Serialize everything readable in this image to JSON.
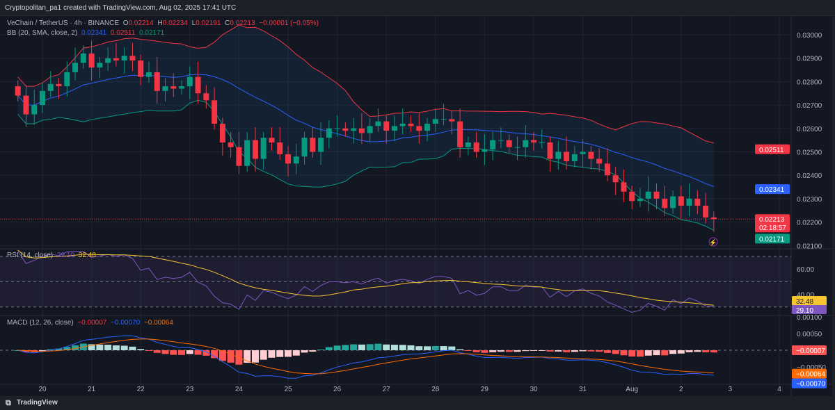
{
  "header": {
    "credit": "Cryptopolitan_pa1 created with TradingView.com, Aug 02, 2025 17:41 UTC"
  },
  "legend": {
    "symbol": "VeChain / TetherUS · 4h · BINANCE",
    "o_label": "O",
    "o": "0.02214",
    "h_label": "H",
    "h": "0.02234",
    "l_label": "L",
    "l": "0.02191",
    "c_label": "C",
    "c": "0.02213",
    "change": "−0.00001 (−0.05%)",
    "bb_label": "BB (20, SMA, close, 2)",
    "bb_basis": "0.02341",
    "bb_upper": "0.02511",
    "bb_lower": "0.02171",
    "rsi_label": "RSI (14, close)",
    "rsi": "29.10",
    "rsi_ma": "32.48",
    "macd_label": "MACD (12, 26, close)",
    "macd_hist": "−0.00007",
    "macd": "−0.00070",
    "macd_signal": "−0.00064"
  },
  "footer": {
    "brand": "TradingView"
  },
  "colors": {
    "up": "#089981",
    "down": "#f23645",
    "bb_basis": "#2962ff",
    "bb_upper": "#f23645",
    "bb_lower": "#089981",
    "rsi": "#7e57c2",
    "rsi_ma": "#f7c531",
    "macd": "#2962ff",
    "signal": "#ff6d00"
  },
  "chart_data": [
    {
      "type": "candlestick",
      "interval": "4h",
      "closes": [
        0.0274,
        0.0266,
        0.027,
        0.0276,
        0.0279,
        0.0278,
        0.0284,
        0.0288,
        0.0292,
        0.0286,
        0.0288,
        0.029,
        0.0289,
        0.0291,
        0.0289,
        0.0282,
        0.0284,
        0.0276,
        0.0278,
        0.0277,
        0.0278,
        0.0282,
        0.0275,
        0.0272,
        0.0262,
        0.0254,
        0.0252,
        0.0244,
        0.0255,
        0.0247,
        0.0256,
        0.0254,
        0.0249,
        0.0245,
        0.0248,
        0.0256,
        0.025,
        0.0256,
        0.026,
        0.026,
        0.0259,
        0.026,
        0.0258,
        0.0261,
        0.0263,
        0.0259,
        0.0261,
        0.0262,
        0.0261,
        0.0259,
        0.0262,
        0.0264,
        0.0264,
        0.0263,
        0.0252,
        0.0254,
        0.025,
        0.0251,
        0.0255,
        0.0255,
        0.0252,
        0.0252,
        0.0255,
        0.0254,
        0.0254,
        0.0247,
        0.025,
        0.0246,
        0.0249,
        0.025,
        0.0247,
        0.0245,
        0.024,
        0.0237,
        0.0233,
        0.0229,
        0.023,
        0.0233,
        0.023,
        0.0226,
        0.0231,
        0.0227,
        0.023,
        0.0227,
        0.0222,
        0.02213
      ],
      "x_ticks": [
        "20",
        "21",
        "22",
        "23",
        "24",
        "25",
        "26",
        "27",
        "28",
        "29",
        "30",
        "31",
        "Aug",
        "2",
        "3",
        "4"
      ],
      "y_ticks": [
        "0.03000",
        "0.02900",
        "0.02800",
        "0.02700",
        "0.02600",
        "0.02500",
        "0.02400",
        "0.02300",
        "0.02200",
        "0.02100"
      ],
      "ylim": [
        0.0209,
        0.0303
      ],
      "price_labels": {
        "upper": "0.02511",
        "basis": "0.02341",
        "last": "0.02213",
        "countdown": "02:18:57",
        "lower": "0.02171"
      }
    },
    {
      "type": "line",
      "y_ticks": [
        "60.00",
        "40.00"
      ],
      "levels": [
        70,
        50,
        30
      ],
      "ylim": [
        20,
        75
      ],
      "labels": {
        "ma": "32.48",
        "rsi": "29.10"
      }
    },
    {
      "type": "bar+line",
      "y_ticks": [
        "0.00100",
        "0.00050",
        "−0.00050"
      ],
      "ylim": [
        -0.0011,
        0.0011
      ],
      "labels": {
        "hist": "−0.00007",
        "signal": "−0.00064",
        "macd": "−0.00070"
      }
    }
  ]
}
